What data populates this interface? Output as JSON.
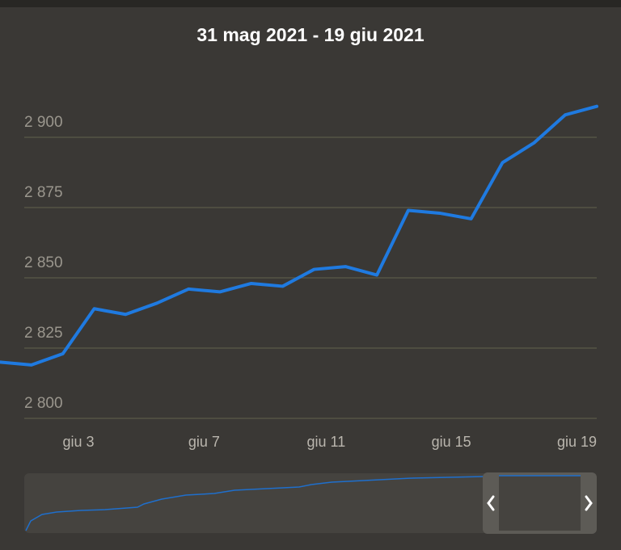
{
  "chart_data": {
    "type": "line",
    "title": "31 mag 2021 - 19 giu 2021",
    "categories": [
      null,
      null,
      null,
      "giu 3",
      null,
      null,
      null,
      "giu 7",
      null,
      null,
      null,
      "giu 11",
      null,
      null,
      null,
      "giu 15",
      null,
      null,
      null,
      "giu 19"
    ],
    "series": [
      {
        "color": "#1f7ae0",
        "values": [
          2820,
          2819,
          2823,
          2839,
          2837,
          2841,
          2846,
          2845,
          2848,
          2847,
          2853,
          2854,
          2851,
          2874,
          2873,
          2871,
          2891,
          2898,
          2908,
          2911
        ]
      }
    ],
    "ylim": [
      2800,
      2920
    ],
    "yticks": [
      {
        "value": 2800,
        "label": "2 800"
      },
      {
        "value": 2825,
        "label": "2 825"
      },
      {
        "value": 2850,
        "label": "2 850"
      },
      {
        "value": 2875,
        "label": "2 875"
      },
      {
        "value": 2900,
        "label": "2 900"
      }
    ],
    "grid": true
  }
}
